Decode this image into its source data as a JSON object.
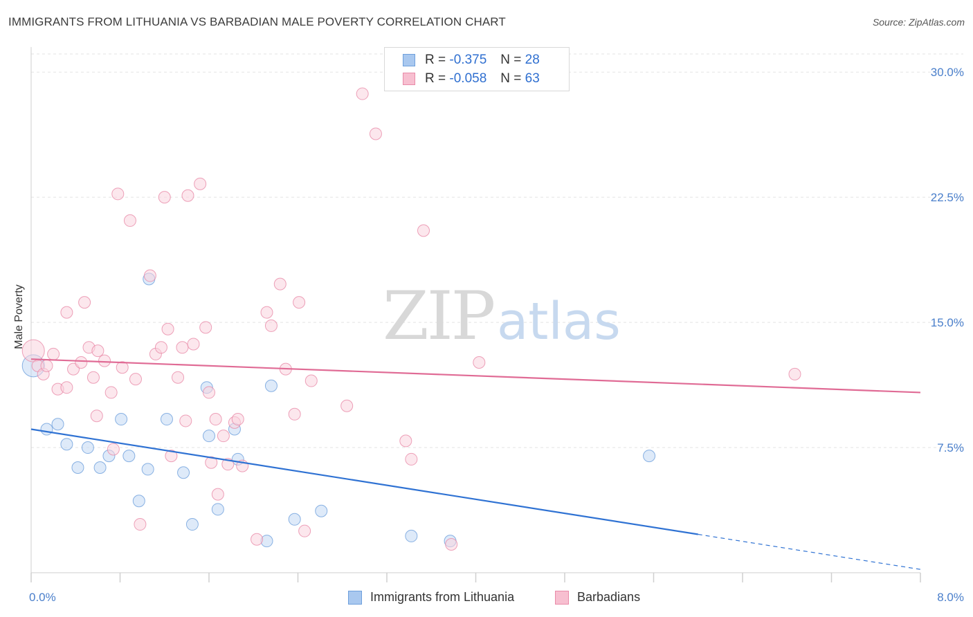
{
  "title": "IMMIGRANTS FROM LITHUANIA VS BARBADIAN MALE POVERTY CORRELATION CHART",
  "source": "Source: ZipAtlas.com",
  "watermark": {
    "zip": "ZIP",
    "atlas": "atlas"
  },
  "legend_top": [
    {
      "r_label": "R =",
      "r_value": "-0.375",
      "n_label": "N =",
      "n_value": "28",
      "color": "#a9c8ef",
      "border": "#6d9fdc"
    },
    {
      "r_label": "R =",
      "r_value": "-0.058",
      "n_label": "N =",
      "n_value": "63",
      "color": "#f7bfd0",
      "border": "#e98aa8"
    }
  ],
  "chart_data": {
    "type": "scatter",
    "title": "IMMIGRANTS FROM LITHUANIA VS BARBADIAN MALE POVERTY CORRELATION CHART",
    "xlabel": "",
    "ylabel": "Male Poverty",
    "xlim": [
      0,
      8
    ],
    "ylim": [
      0,
      31.5
    ],
    "x_tick_labels": [
      {
        "value": 0,
        "label": "0.0%"
      },
      {
        "value": 8,
        "label": "8.0%"
      }
    ],
    "y_tick_labels": [
      {
        "value": 7.5,
        "label": "7.5%"
      },
      {
        "value": 15,
        "label": "15.0%"
      },
      {
        "value": 22.5,
        "label": "22.5%"
      },
      {
        "value": 30,
        "label": "30.0%"
      }
    ],
    "grid": true,
    "legend_position": "bottom",
    "series": [
      {
        "name": "Immigrants from Lithuania",
        "color": "#6d9fdc",
        "fill": "#c3d8f4",
        "trend": {
          "x0": 0,
          "y0": 8.6,
          "x1": 6.0,
          "y1": 2.3,
          "dashed_to_x": 8.0,
          "dashed_to_y": 0.2,
          "color": "#2f72d3"
        },
        "points": [
          [
            0.02,
            12.4
          ],
          [
            0.14,
            8.6
          ],
          [
            0.24,
            8.9
          ],
          [
            0.32,
            7.7
          ],
          [
            0.42,
            6.3
          ],
          [
            0.51,
            7.5
          ],
          [
            0.62,
            6.3
          ],
          [
            0.7,
            7.0
          ],
          [
            0.81,
            9.2
          ],
          [
            0.88,
            7.0
          ],
          [
            0.97,
            4.3
          ],
          [
            1.05,
            6.2
          ],
          [
            1.06,
            17.6
          ],
          [
            1.22,
            9.2
          ],
          [
            1.37,
            6.0
          ],
          [
            1.45,
            2.9
          ],
          [
            1.58,
            11.1
          ],
          [
            1.6,
            8.2
          ],
          [
            1.68,
            3.8
          ],
          [
            1.83,
            8.6
          ],
          [
            1.86,
            6.8
          ],
          [
            2.12,
            1.9
          ],
          [
            2.16,
            11.2
          ],
          [
            2.37,
            3.2
          ],
          [
            2.61,
            3.7
          ],
          [
            3.42,
            2.2
          ],
          [
            3.77,
            1.9
          ],
          [
            5.56,
            7.0
          ]
        ]
      },
      {
        "name": "Barbadians",
        "color": "#e98aa8",
        "fill": "#f9d3df",
        "trend": {
          "x0": 0,
          "y0": 12.8,
          "x1": 8.0,
          "y1": 10.8,
          "color": "#e06b95"
        },
        "points": [
          [
            0.02,
            13.3
          ],
          [
            0.06,
            12.4
          ],
          [
            0.11,
            11.9
          ],
          [
            0.14,
            12.4
          ],
          [
            0.2,
            13.1
          ],
          [
            0.24,
            11.0
          ],
          [
            0.32,
            15.6
          ],
          [
            0.32,
            11.1
          ],
          [
            0.38,
            12.2
          ],
          [
            0.45,
            12.6
          ],
          [
            0.48,
            16.2
          ],
          [
            0.52,
            13.5
          ],
          [
            0.56,
            11.7
          ],
          [
            0.59,
            9.4
          ],
          [
            0.66,
            12.7
          ],
          [
            0.72,
            10.8
          ],
          [
            0.74,
            7.4
          ],
          [
            0.78,
            22.7
          ],
          [
            0.82,
            12.3
          ],
          [
            0.89,
            21.1
          ],
          [
            0.94,
            11.6
          ],
          [
            0.98,
            2.9
          ],
          [
            1.07,
            17.8
          ],
          [
            1.12,
            13.1
          ],
          [
            1.17,
            13.5
          ],
          [
            1.2,
            22.5
          ],
          [
            1.23,
            14.6
          ],
          [
            1.26,
            7.0
          ],
          [
            1.32,
            11.7
          ],
          [
            1.36,
            13.5
          ],
          [
            1.39,
            9.1
          ],
          [
            1.41,
            22.6
          ],
          [
            1.46,
            13.7
          ],
          [
            1.52,
            23.3
          ],
          [
            1.57,
            14.7
          ],
          [
            1.6,
            10.8
          ],
          [
            1.62,
            6.6
          ],
          [
            1.66,
            9.2
          ],
          [
            1.68,
            4.7
          ],
          [
            1.73,
            8.2
          ],
          [
            1.77,
            6.5
          ],
          [
            1.83,
            9.0
          ],
          [
            1.86,
            9.2
          ],
          [
            1.9,
            6.4
          ],
          [
            2.03,
            2.0
          ],
          [
            2.12,
            15.6
          ],
          [
            2.16,
            14.8
          ],
          [
            2.24,
            17.3
          ],
          [
            2.29,
            12.2
          ],
          [
            2.37,
            9.5
          ],
          [
            2.41,
            16.2
          ],
          [
            2.46,
            2.5
          ],
          [
            2.52,
            11.5
          ],
          [
            2.84,
            10.0
          ],
          [
            2.98,
            28.7
          ],
          [
            3.1,
            26.3
          ],
          [
            3.37,
            7.9
          ],
          [
            3.42,
            6.8
          ],
          [
            3.53,
            20.5
          ],
          [
            3.78,
            1.7
          ],
          [
            4.03,
            12.6
          ],
          [
            6.87,
            11.9
          ],
          [
            0.6,
            13.3
          ]
        ]
      }
    ]
  }
}
